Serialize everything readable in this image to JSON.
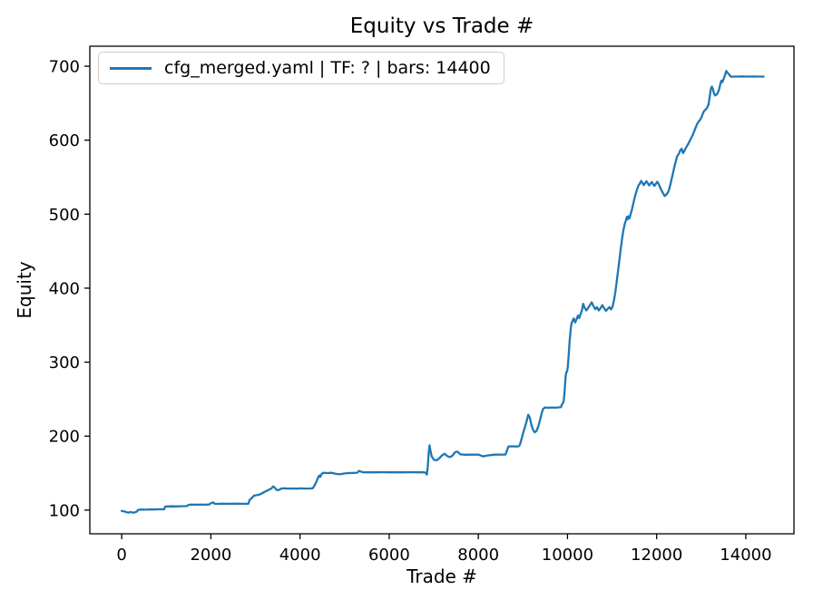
{
  "figure": {
    "background": "#ffffff"
  },
  "chart_data": {
    "type": "line",
    "title": "Equity vs Trade #",
    "xlabel": "Trade #",
    "ylabel": "Equity",
    "legend": {
      "position": "upper left",
      "entries": [
        {
          "label": "cfg_merged.yaml | TF: ? | bars: 14400",
          "color": "#1f77b4"
        }
      ]
    },
    "axes": {
      "xlim": [
        -715,
        15080
      ],
      "ylim": [
        68,
        727
      ],
      "xticks": [
        0,
        2000,
        4000,
        6000,
        8000,
        10000,
        12000,
        14000
      ],
      "yticks": [
        100,
        200,
        300,
        400,
        500,
        600,
        700
      ],
      "grid": false,
      "spine_color": "#000000"
    },
    "series": [
      {
        "name": "cfg_merged.yaml | TF: ? | bars: 14400",
        "color": "#1f77b4",
        "points": [
          [
            0,
            99
          ],
          [
            50,
            98.4
          ],
          [
            100,
            97.3
          ],
          [
            150,
            96.7
          ],
          [
            200,
            97.4
          ],
          [
            250,
            96.5
          ],
          [
            300,
            97
          ],
          [
            340,
            98
          ],
          [
            370,
            100.3
          ],
          [
            420,
            100.8
          ],
          [
            520,
            100.6
          ],
          [
            620,
            101
          ],
          [
            720,
            100.8
          ],
          [
            820,
            101.1
          ],
          [
            950,
            101.1
          ],
          [
            975,
            104.6
          ],
          [
            1020,
            105
          ],
          [
            1120,
            105.1
          ],
          [
            1220,
            105
          ],
          [
            1320,
            105.2
          ],
          [
            1420,
            105.3
          ],
          [
            1465,
            105.5
          ],
          [
            1495,
            106.9
          ],
          [
            1540,
            107.5
          ],
          [
            1650,
            107.3
          ],
          [
            1760,
            107.5
          ],
          [
            1870,
            107.3
          ],
          [
            1960,
            107.6
          ],
          [
            2015,
            109.8
          ],
          [
            2055,
            110.4
          ],
          [
            2085,
            108.6
          ],
          [
            2160,
            108.4
          ],
          [
            2260,
            108.7
          ],
          [
            2400,
            108.5
          ],
          [
            2550,
            108.7
          ],
          [
            2700,
            108.5
          ],
          [
            2840,
            108.6
          ],
          [
            2870,
            113.8
          ],
          [
            2900,
            115.2
          ],
          [
            2930,
            117
          ],
          [
            2965,
            119.4
          ],
          [
            3010,
            120.1
          ],
          [
            3070,
            120.7
          ],
          [
            3130,
            122.2
          ],
          [
            3190,
            124.1
          ],
          [
            3250,
            126.1
          ],
          [
            3305,
            127.7
          ],
          [
            3355,
            129.1
          ],
          [
            3395,
            131.9
          ],
          [
            3430,
            130.7
          ],
          [
            3470,
            127.4
          ],
          [
            3520,
            127
          ],
          [
            3575,
            128.9
          ],
          [
            3630,
            129.5
          ],
          [
            3720,
            129.1
          ],
          [
            3820,
            129.3
          ],
          [
            3920,
            129
          ],
          [
            4020,
            129.4
          ],
          [
            4120,
            129.1
          ],
          [
            4220,
            129.3
          ],
          [
            4285,
            129.5
          ],
          [
            4325,
            133
          ],
          [
            4365,
            138.1
          ],
          [
            4400,
            143.2
          ],
          [
            4430,
            146.8
          ],
          [
            4455,
            145.1
          ],
          [
            4485,
            148.8
          ],
          [
            4520,
            150.4
          ],
          [
            4610,
            150.1
          ],
          [
            4710,
            150.4
          ],
          [
            4810,
            149
          ],
          [
            4900,
            148.3
          ],
          [
            5000,
            149.6
          ],
          [
            5100,
            150.1
          ],
          [
            5210,
            150.3
          ],
          [
            5285,
            150.6
          ],
          [
            5325,
            153
          ],
          [
            5365,
            152
          ],
          [
            5415,
            151
          ],
          [
            5560,
            151.2
          ],
          [
            5710,
            151
          ],
          [
            5860,
            151.3
          ],
          [
            6010,
            151
          ],
          [
            6160,
            151.2
          ],
          [
            6310,
            151
          ],
          [
            6460,
            151.3
          ],
          [
            6610,
            151
          ],
          [
            6760,
            151.1
          ],
          [
            6815,
            150.7
          ],
          [
            6845,
            148
          ],
          [
            6865,
            158
          ],
          [
            6885,
            176
          ],
          [
            6905,
            187.5
          ],
          [
            6925,
            181
          ],
          [
            6955,
            172.5
          ],
          [
            7005,
            168
          ],
          [
            7065,
            167.4
          ],
          [
            7125,
            170
          ],
          [
            7185,
            174
          ],
          [
            7245,
            176.2
          ],
          [
            7305,
            173
          ],
          [
            7365,
            171.6
          ],
          [
            7425,
            174
          ],
          [
            7480,
            178.4
          ],
          [
            7535,
            179
          ],
          [
            7595,
            175.4
          ],
          [
            7705,
            174.8
          ],
          [
            7855,
            175.1
          ],
          [
            8005,
            174.9
          ],
          [
            8105,
            172.6
          ],
          [
            8205,
            173.8
          ],
          [
            8355,
            174.9
          ],
          [
            8505,
            175.1
          ],
          [
            8610,
            175
          ],
          [
            8645,
            181
          ],
          [
            8675,
            186
          ],
          [
            8765,
            186.2
          ],
          [
            8865,
            186
          ],
          [
            8915,
            186.5
          ],
          [
            8935,
            189
          ],
          [
            8970,
            196
          ],
          [
            9005,
            204
          ],
          [
            9045,
            212
          ],
          [
            9085,
            220.6
          ],
          [
            9120,
            228.8
          ],
          [
            9155,
            225
          ],
          [
            9190,
            215.5
          ],
          [
            9225,
            209
          ],
          [
            9265,
            205.2
          ],
          [
            9305,
            207
          ],
          [
            9345,
            213
          ],
          [
            9385,
            221.8
          ],
          [
            9420,
            230.6
          ],
          [
            9450,
            236.6
          ],
          [
            9495,
            238.8
          ],
          [
            9565,
            238.3
          ],
          [
            9645,
            238.8
          ],
          [
            9725,
            238.4
          ],
          [
            9805,
            238.9
          ],
          [
            9855,
            239.3
          ],
          [
            9870,
            242
          ],
          [
            9895,
            244.5
          ],
          [
            9915,
            247
          ],
          [
            9932,
            258
          ],
          [
            9946,
            271
          ],
          [
            9960,
            282
          ],
          [
            9974,
            286
          ],
          [
            9992,
            287.5
          ],
          [
            10006,
            293
          ],
          [
            10021,
            305
          ],
          [
            10036,
            318
          ],
          [
            10051,
            330
          ],
          [
            10066,
            341
          ],
          [
            10081,
            349
          ],
          [
            10096,
            353
          ],
          [
            10112,
            355.5
          ],
          [
            10140,
            359
          ],
          [
            10172,
            353.6
          ],
          [
            10205,
            358
          ],
          [
            10235,
            363
          ],
          [
            10265,
            359.5
          ],
          [
            10295,
            365
          ],
          [
            10325,
            370.2
          ],
          [
            10352,
            378.8
          ],
          [
            10382,
            374
          ],
          [
            10422,
            369.8
          ],
          [
            10462,
            373
          ],
          [
            10502,
            377
          ],
          [
            10542,
            380.8
          ],
          [
            10582,
            376
          ],
          [
            10622,
            371.6
          ],
          [
            10662,
            374.2
          ],
          [
            10702,
            370
          ],
          [
            10742,
            373
          ],
          [
            10782,
            377.2
          ],
          [
            10822,
            372.8
          ],
          [
            10862,
            369.2
          ],
          [
            10902,
            372
          ],
          [
            10942,
            374.5
          ],
          [
            10978,
            371.2
          ],
          [
            11012,
            375
          ],
          [
            11042,
            383
          ],
          [
            11072,
            394
          ],
          [
            11102,
            408
          ],
          [
            11132,
            422
          ],
          [
            11162,
            437
          ],
          [
            11192,
            452
          ],
          [
            11222,
            466
          ],
          [
            11252,
            477
          ],
          [
            11282,
            486
          ],
          [
            11312,
            492
          ],
          [
            11332,
            496.5
          ],
          [
            11352,
            493
          ],
          [
            11372,
            497.2
          ],
          [
            11392,
            494.5
          ],
          [
            11412,
            499
          ],
          [
            11442,
            505.5
          ],
          [
            11472,
            513
          ],
          [
            11502,
            521
          ],
          [
            11532,
            528
          ],
          [
            11562,
            534
          ],
          [
            11592,
            538.5
          ],
          [
            11622,
            541.2
          ],
          [
            11652,
            544.8
          ],
          [
            11682,
            542
          ],
          [
            11712,
            539.2
          ],
          [
            11742,
            542.2
          ],
          [
            11772,
            544.5
          ],
          [
            11802,
            541.5
          ],
          [
            11832,
            538.8
          ],
          [
            11862,
            541.2
          ],
          [
            11892,
            543.5
          ],
          [
            11922,
            540.5
          ],
          [
            11952,
            538.2
          ],
          [
            11982,
            541
          ],
          [
            12012,
            543.8
          ],
          [
            12042,
            541
          ],
          [
            12072,
            537.2
          ],
          [
            12102,
            533
          ],
          [
            12142,
            528.2
          ],
          [
            12182,
            524.5
          ],
          [
            12222,
            526.8
          ],
          [
            12252,
            529.2
          ],
          [
            12282,
            534
          ],
          [
            12312,
            541
          ],
          [
            12342,
            549
          ],
          [
            12372,
            557
          ],
          [
            12402,
            565
          ],
          [
            12432,
            572
          ],
          [
            12462,
            578.5
          ],
          [
            12502,
            582
          ],
          [
            12532,
            586.5
          ],
          [
            12562,
            588.5
          ],
          [
            12592,
            582.6
          ],
          [
            12622,
            585.5
          ],
          [
            12662,
            590.2
          ],
          [
            12702,
            594.2
          ],
          [
            12742,
            599
          ],
          [
            12782,
            603.5
          ],
          [
            12822,
            609
          ],
          [
            12862,
            615
          ],
          [
            12902,
            621
          ],
          [
            12942,
            625.2
          ],
          [
            12982,
            628
          ],
          [
            13012,
            632
          ],
          [
            13042,
            637
          ],
          [
            13072,
            640
          ],
          [
            13102,
            641.5
          ],
          [
            13132,
            644
          ],
          [
            13162,
            648
          ],
          [
            13187,
            657
          ],
          [
            13212,
            668
          ],
          [
            13237,
            672.5
          ],
          [
            13262,
            669
          ],
          [
            13287,
            663
          ],
          [
            13312,
            660.5
          ],
          [
            13342,
            661.5
          ],
          [
            13372,
            664
          ],
          [
            13402,
            669
          ],
          [
            13427,
            675.5
          ],
          [
            13452,
            680.5
          ],
          [
            13477,
            678.5
          ],
          [
            13507,
            683.5
          ],
          [
            13537,
            688.5
          ],
          [
            13562,
            693.5
          ],
          [
            13587,
            691.5
          ],
          [
            13617,
            689.5
          ],
          [
            13647,
            687
          ],
          [
            13677,
            685.6
          ],
          [
            13712,
            686
          ],
          [
            13812,
            686
          ],
          [
            13912,
            686.2
          ],
          [
            14012,
            686
          ],
          [
            14162,
            686.1
          ],
          [
            14312,
            686
          ],
          [
            14400,
            686
          ]
        ]
      }
    ]
  }
}
